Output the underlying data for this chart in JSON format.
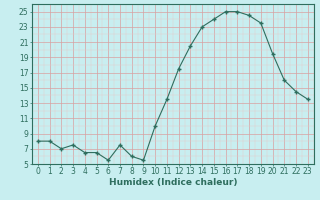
{
  "x": [
    0,
    1,
    2,
    3,
    4,
    5,
    6,
    7,
    8,
    9,
    10,
    11,
    12,
    13,
    14,
    15,
    16,
    17,
    18,
    19,
    20,
    21,
    22,
    23
  ],
  "y": [
    8,
    8,
    7,
    7.5,
    6.5,
    6.5,
    5.5,
    7.5,
    6,
    5.5,
    10,
    13.5,
    17.5,
    20.5,
    23,
    24,
    25,
    25,
    24.5,
    23.5,
    19.5,
    16,
    14.5,
    13.5
  ],
  "line_color": "#2e6e5e",
  "marker_color": "#2e6e5e",
  "bg_color": "#c8eef0",
  "grid_major_color": "#d9a0a0",
  "grid_minor_color": "#e8c8c8",
  "xlabel": "Humidex (Indice chaleur)",
  "ylim": [
    5,
    26
  ],
  "xlim": [
    -0.5,
    23.5
  ],
  "yticks": [
    5,
    7,
    9,
    11,
    13,
    15,
    17,
    19,
    21,
    23,
    25
  ],
  "xticks": [
    0,
    1,
    2,
    3,
    4,
    5,
    6,
    7,
    8,
    9,
    10,
    11,
    12,
    13,
    14,
    15,
    16,
    17,
    18,
    19,
    20,
    21,
    22,
    23
  ],
  "xlabel_fontsize": 6.5,
  "tick_fontsize": 5.5
}
